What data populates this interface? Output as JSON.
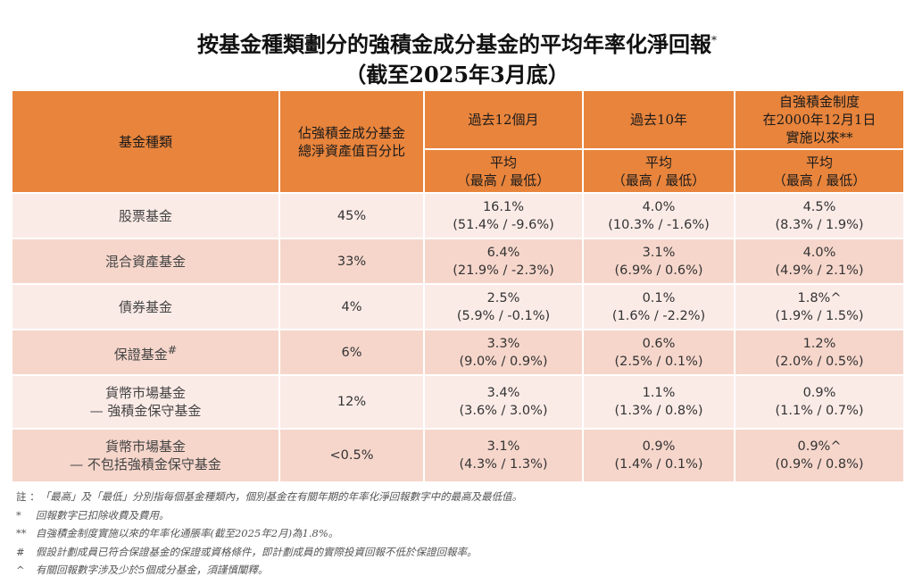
{
  "title": {
    "main": "按基金種類劃分的強積金成分基金的平均年率化淨回報",
    "main_mark": "*",
    "subtitle": "（截至2025年3月底）"
  },
  "colors": {
    "header": "#E8843C",
    "row_light": "#FBEBE7",
    "row_dark": "#F6D6CB"
  },
  "table": {
    "headers": {
      "fund_type": "基金種類",
      "nav_share_1": "佔強積金成分基金",
      "nav_share_2": "總淨資產值百分比",
      "p12m": "過去12個月",
      "p10y": "過去10年",
      "since_1": "自強積金制度",
      "since_2": "在2000年12月1日",
      "since_3": "實施以來**",
      "avg": "平均",
      "hilo": "（最高 / 最低）"
    },
    "rows": [
      {
        "name": [
          "股票基金"
        ],
        "mark": "",
        "share": "45%",
        "c1": [
          "16.1%",
          "(51.4% / -9.6%)"
        ],
        "c2": [
          "4.0%",
          "(10.3% / -1.6%)"
        ],
        "c3": [
          "4.5%",
          "(8.3% / 1.9%)"
        ]
      },
      {
        "name": [
          "混合資產基金"
        ],
        "mark": "",
        "share": "33%",
        "c1": [
          "6.4%",
          "(21.9% / -2.3%)"
        ],
        "c2": [
          "3.1%",
          "(6.9% / 0.6%)"
        ],
        "c3": [
          "4.0%",
          "(4.9% / 2.1%)"
        ]
      },
      {
        "name": [
          "債券基金"
        ],
        "mark": "",
        "share": "4%",
        "c1": [
          "2.5%",
          "(5.9% / -0.1%)"
        ],
        "c2": [
          "0.1%",
          "(1.6% / -2.2%)"
        ],
        "c3": [
          "1.8%^",
          "(1.9% / 1.5%)"
        ]
      },
      {
        "name": [
          "保證基金"
        ],
        "mark": "#",
        "share": "6%",
        "c1": [
          "3.3%",
          "(9.0% / 0.9%)"
        ],
        "c2": [
          "0.6%",
          "(2.5% / 0.1%)"
        ],
        "c3": [
          "1.2%",
          "(2.0% / 0.5%)"
        ]
      },
      {
        "name": [
          "貨幣市場基金",
          "— 強積金保守基金"
        ],
        "mark": "",
        "share": "12%",
        "c1": [
          "3.4%",
          "(3.6% / 3.0%)"
        ],
        "c2": [
          "1.1%",
          "(1.3% / 0.8%)"
        ],
        "c3": [
          "0.9%",
          "(1.1% / 0.7%)"
        ]
      },
      {
        "name": [
          "貨幣市場基金",
          "— 不包括強積金保守基金"
        ],
        "mark": "",
        "share": "<0.5%",
        "c1": [
          "3.1%",
          "(4.3% / 1.3%)"
        ],
        "c2": [
          "0.9%",
          "(1.4% / 0.1%)"
        ],
        "c3": [
          "0.9%^",
          "(0.9% / 0.8%)"
        ]
      }
    ]
  },
  "notes": [
    {
      "sym": "註 ：",
      "text": "「最高」及「最低」分別指每個基金種類內，個別基金在有關年期的年率化淨回報數字中的最高及最低值。"
    },
    {
      "sym": "*",
      "text": "回報數字已扣除收費及費用。"
    },
    {
      "sym": "**",
      "text": "自強積金制度實施以來的年率化通脹率(截至2025年2月)為1.8%。"
    },
    {
      "sym": "#",
      "text": "假設計劃成員已符合保證基金的保證或資格條件，即計劃成員的實際投資回報不低於保證回報率。"
    },
    {
      "sym": "^",
      "text": "有關回報數字涉及少於5個成分基金，須謹慎闡釋。"
    }
  ]
}
